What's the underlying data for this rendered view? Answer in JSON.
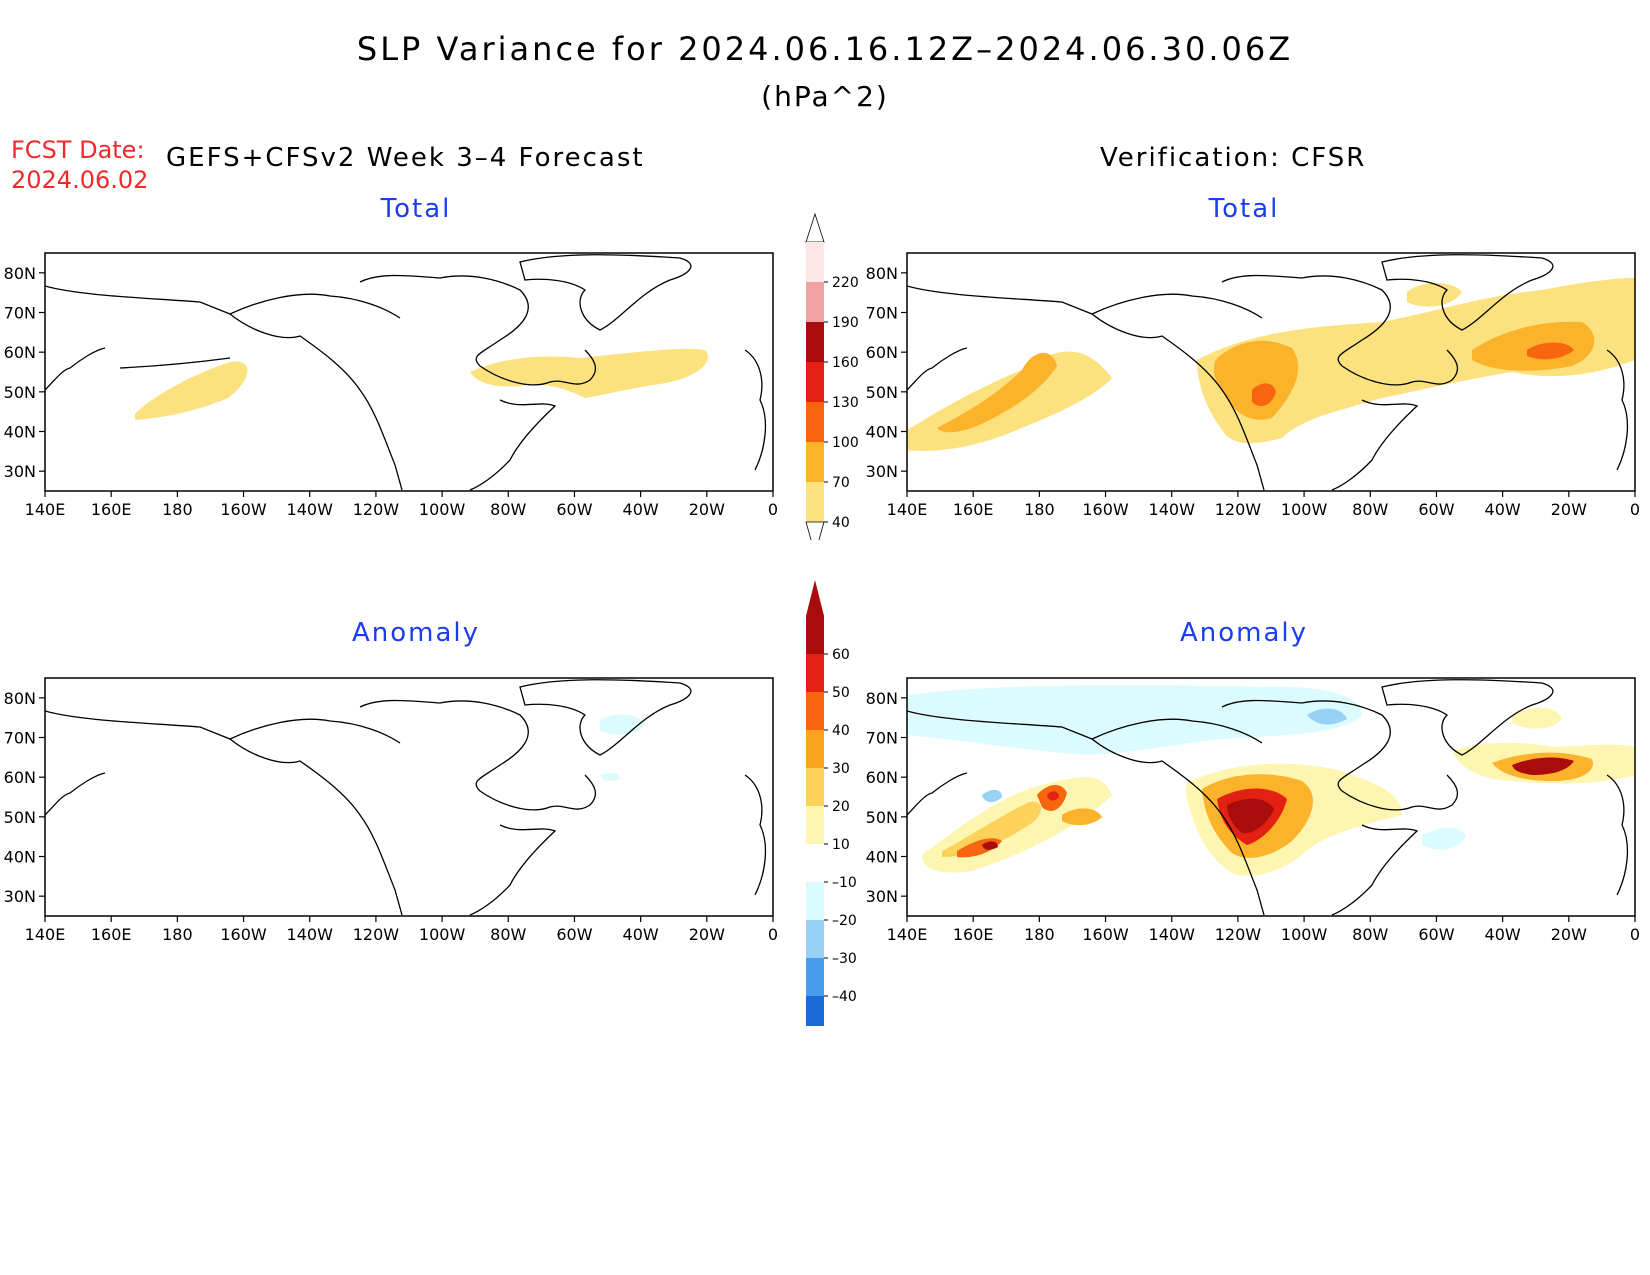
{
  "title": "SLP Variance for 2024.06.16.12Z–2024.06.30.06Z",
  "units": "(hPa^2)",
  "forecast": {
    "date_label": "FCST Date:",
    "date_value": "2024.06.02",
    "heading": "GEFS+CFSv2 Week 3–4 Forecast"
  },
  "verification": {
    "heading": "Verification: CFSR"
  },
  "panels": {
    "total_label": "Total",
    "anomaly_label": "Anomaly"
  },
  "axes": {
    "lat_ticks": [
      "80N",
      "70N",
      "60N",
      "50N",
      "40N",
      "30N"
    ],
    "lat_values": [
      80,
      70,
      60,
      50,
      40,
      30
    ],
    "lon_ticks": [
      "140E",
      "160E",
      "180",
      "160W",
      "140W",
      "120W",
      "100W",
      "80W",
      "60W",
      "40W",
      "20W",
      "0"
    ],
    "lat_range": [
      25,
      85
    ],
    "lon_range": [
      140,
      360
    ]
  },
  "colorbars": {
    "total": {
      "levels": [
        "40",
        "70",
        "100",
        "130",
        "160",
        "190",
        "220"
      ],
      "colors": [
        "#fce27f",
        "#fcb32c",
        "#f8650f",
        "#e32112",
        "#a80c0c",
        "#f2a1a1",
        "#fde6e6"
      ]
    },
    "anomaly": {
      "levels": [
        "60",
        "50",
        "40",
        "30",
        "20",
        "10",
        "–10",
        "–20",
        "–30",
        "–40"
      ],
      "colors": [
        "#a80c0c",
        "#e32112",
        "#f8650f",
        "#fca320",
        "#fcd25a",
        "#fdf5b0",
        "#ffffff",
        "#dcfbff",
        "#98d0f6",
        "#4a9cec",
        "#1c6ad8"
      ]
    }
  }
}
